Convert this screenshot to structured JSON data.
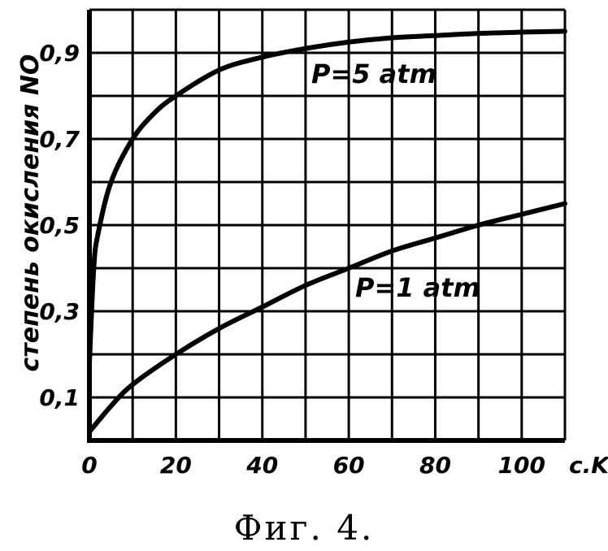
{
  "caption": "Фиг. 4.",
  "chart_data": {
    "type": "line",
    "ylabel": "степень окисления NO",
    "xlabel": "",
    "x_unit": "c.K",
    "x_ticks": [
      "0",
      "20",
      "40",
      "60",
      "80",
      "100"
    ],
    "y_ticks": [
      "0,1",
      "0,3",
      "0,5",
      "0,7",
      "0,9"
    ],
    "xlim": [
      0,
      110
    ],
    "ylim": [
      0,
      1.0
    ],
    "grid": true,
    "series": [
      {
        "name": "P=5 atm",
        "x": [
          0,
          1,
          2,
          5,
          10,
          15,
          20,
          30,
          40,
          50,
          60,
          70,
          80,
          90,
          100,
          110
        ],
        "y": [
          0.18,
          0.4,
          0.48,
          0.6,
          0.7,
          0.76,
          0.8,
          0.86,
          0.89,
          0.91,
          0.925,
          0.935,
          0.94,
          0.945,
          0.948,
          0.95
        ]
      },
      {
        "name": "P=1 atm",
        "x": [
          0,
          5,
          10,
          20,
          30,
          40,
          50,
          60,
          70,
          80,
          90,
          100,
          110
        ],
        "y": [
          0.02,
          0.08,
          0.13,
          0.2,
          0.26,
          0.31,
          0.36,
          0.4,
          0.44,
          0.47,
          0.5,
          0.525,
          0.55
        ]
      }
    ]
  }
}
